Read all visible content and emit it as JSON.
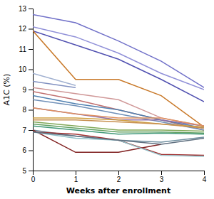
{
  "chart_data": {
    "type": "line",
    "xlabel": "Weeks after enrollment",
    "ylabel": "A1C (%)",
    "x": [
      0,
      1,
      2,
      3,
      4
    ],
    "xlim": [
      0,
      4
    ],
    "ylim": [
      5,
      13
    ],
    "xticks": [
      0,
      1,
      2,
      3,
      4
    ],
    "yticks": [
      5,
      6,
      7,
      8,
      9,
      10,
      11,
      12,
      13
    ],
    "grid": false,
    "series": [
      {
        "color": "#7070c8",
        "values": [
          12.7,
          12.3,
          11.4,
          10.4,
          9.1
        ]
      },
      {
        "color": "#9090d8",
        "values": [
          12.1,
          11.6,
          10.8,
          9.8,
          9.0
        ]
      },
      {
        "color": "#5050b0",
        "values": [
          11.9,
          11.2,
          10.5,
          9.5,
          8.4
        ]
      },
      {
        "color": "#c87828",
        "values": [
          11.9,
          9.5,
          9.5,
          8.7,
          7.15
        ]
      },
      {
        "color": "#a0b0d0",
        "values": [
          9.8,
          9.2,
          null,
          null,
          null
        ]
      },
      {
        "color": "#8090c0",
        "values": [
          9.4,
          9.1,
          null,
          null,
          null
        ]
      },
      {
        "color": "#d09898",
        "values": [
          9.1,
          8.8,
          8.5,
          7.6,
          7.2
        ]
      },
      {
        "color": "#c07070",
        "values": [
          8.9,
          8.5,
          8.0,
          7.5,
          7.0
        ]
      },
      {
        "color": "#5080b0",
        "values": [
          8.7,
          8.3,
          8.0,
          7.5,
          7.1
        ]
      },
      {
        "color": "#7090b8",
        "values": [
          8.5,
          8.2,
          7.8,
          7.4,
          7.0
        ]
      },
      {
        "color": "#9070a8",
        "values": [
          8.1,
          7.8,
          7.5,
          7.5,
          7.2
        ]
      },
      {
        "color": "#e09060",
        "values": [
          8.1,
          7.8,
          7.6,
          7.6,
          7.2
        ]
      },
      {
        "color": "#d0a040",
        "values": [
          7.6,
          7.6,
          7.5,
          7.3,
          7.15
        ]
      },
      {
        "color": "#c89050",
        "values": [
          7.5,
          7.5,
          7.4,
          7.3,
          7.1
        ]
      },
      {
        "color": "#80a858",
        "values": [
          7.4,
          7.2,
          7.0,
          7.0,
          6.95
        ]
      },
      {
        "color": "#60a060",
        "values": [
          7.3,
          7.1,
          6.9,
          6.9,
          6.85
        ]
      },
      {
        "color": "#409878",
        "values": [
          7.2,
          7.0,
          6.8,
          6.85,
          6.8
        ]
      },
      {
        "color": "#7090a0",
        "values": [
          7.0,
          6.7,
          6.5,
          6.4,
          6.65
        ]
      },
      {
        "color": "#802020",
        "values": [
          7.0,
          5.9,
          5.9,
          6.3,
          null
        ]
      },
      {
        "color": "#a03030",
        "values": [
          6.9,
          6.8,
          6.5,
          5.8,
          5.75
        ]
      },
      {
        "color": "#90c0c8",
        "values": [
          6.9,
          6.6,
          6.5,
          5.75,
          5.7
        ]
      },
      {
        "color": "#607080",
        "values": [
          6.9,
          6.7,
          6.5,
          6.3,
          6.6
        ]
      }
    ]
  }
}
